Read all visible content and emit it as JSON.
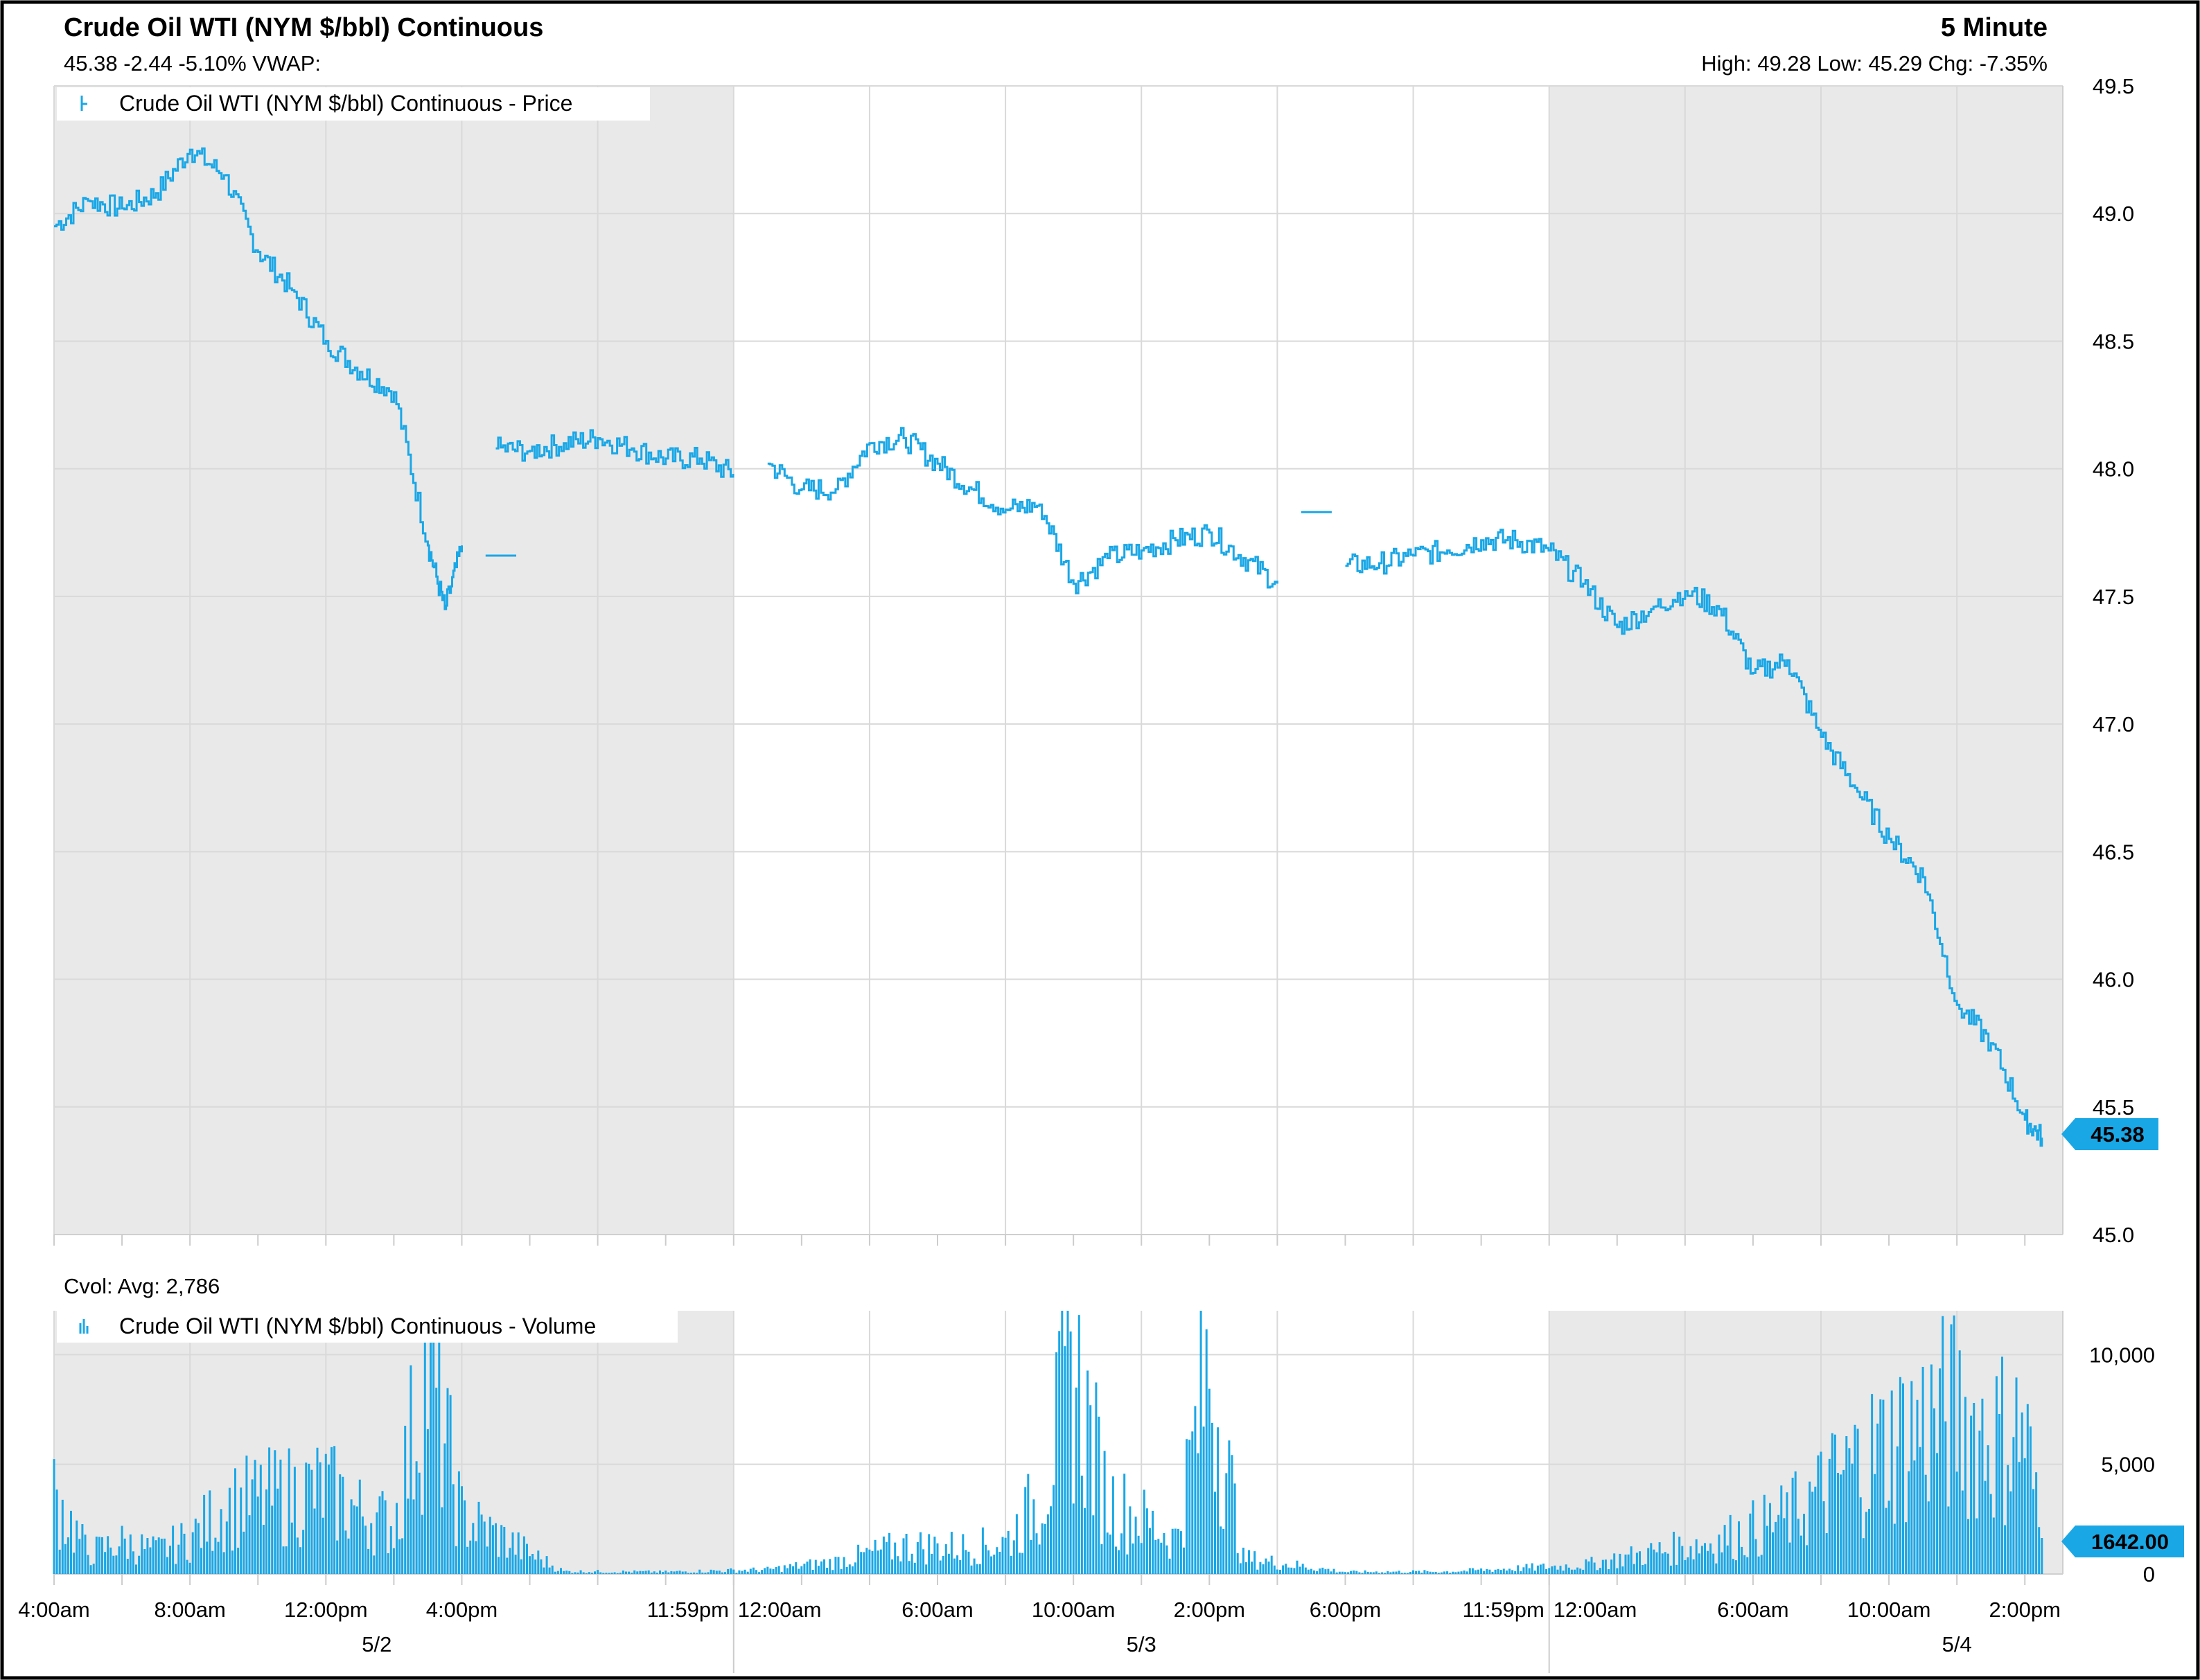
{
  "header": {
    "title": "Crude Oil WTI (NYM $/bbl) Continuous",
    "interval": "5 Minute",
    "quote_line": "45.38 -2.44 -5.10% VWAP:",
    "stats_line": "High: 49.28 Low: 45.29 Chg: -7.35%"
  },
  "volume_header": {
    "cvol_line": "Cvol: Avg: 2,786"
  },
  "colors": {
    "series": "#1aa7e6",
    "session_shade": "#e9e9e9",
    "grid": "#d9d9d9",
    "frame": "#000000",
    "text": "#000000"
  },
  "chart_data": [
    {
      "type": "line",
      "title": "Crude Oil WTI (NYM $/bbl) Continuous",
      "series": [
        {
          "name": "Crude Oil WTI (NYM $/bbl) Continuous - Price",
          "x": [
            "5/2 4:00am",
            "5/2 5:00am",
            "5/2 6:00am",
            "5/2 7:00am",
            "5/2 8:00am",
            "5/2 9:00am",
            "5/2 10:00am",
            "5/2 11:00am",
            "5/2 12:00pm",
            "5/2 1:00pm",
            "5/2 2:00pm",
            "5/2 3:00pm",
            "5/2 3:30pm",
            "5/2 4:00pm",
            "5/2 5:00pm",
            "5/2 6:00pm",
            "5/2 7:00pm",
            "5/2 8:00pm",
            "5/2 9:00pm",
            "5/2 10:00pm",
            "5/2 11:00pm",
            "5/2 11:59pm",
            "5/3 1:00am",
            "5/3 2:00am",
            "5/3 3:00am",
            "5/3 4:00am",
            "5/3 5:00am",
            "5/3 6:00am",
            "5/3 7:00am",
            "5/3 8:00am",
            "5/3 9:00am",
            "5/3 10:00am",
            "5/3 11:00am",
            "5/3 12:00pm",
            "5/3 1:00pm",
            "5/3 2:00pm",
            "5/3 3:00pm",
            "5/3 4:00pm",
            "5/3 6:00pm",
            "5/3 7:00pm",
            "5/3 8:00pm",
            "5/3 9:00pm",
            "5/3 10:00pm",
            "5/3 11:00pm",
            "5/3 11:59pm",
            "5/4 1:00am",
            "5/4 2:00am",
            "5/4 3:00am",
            "5/4 4:00am",
            "5/4 5:00am",
            "5/4 6:00am",
            "5/4 7:00am",
            "5/4 8:00am",
            "5/4 9:00am",
            "5/4 10:00am",
            "5/4 11:00am",
            "5/4 12:00pm",
            "5/4 1:00pm",
            "5/4 2:00pm",
            "5/4 2:30pm"
          ],
          "values": [
            48.95,
            49.05,
            49.02,
            49.08,
            49.25,
            49.15,
            48.85,
            48.7,
            48.5,
            48.38,
            48.3,
            47.7,
            47.45,
            47.7,
            48.08,
            48.07,
            48.1,
            48.12,
            48.08,
            48.04,
            48.04,
            47.98,
            48.02,
            47.92,
            47.92,
            48.1,
            48.12,
            48.02,
            47.92,
            47.84,
            47.86,
            47.55,
            47.65,
            47.68,
            47.72,
            47.75,
            47.65,
            47.55,
            47.62,
            47.63,
            47.66,
            47.68,
            47.72,
            47.72,
            47.68,
            47.55,
            47.38,
            47.45,
            47.52,
            47.45,
            47.2,
            47.25,
            46.95,
            46.75,
            46.55,
            46.4,
            45.9,
            45.75,
            45.45,
            45.38
          ],
          "last_value": 45.38
        }
      ],
      "xlabel": "",
      "ylabel": "",
      "ylim": [
        45.0,
        49.5
      ],
      "y_ticks": [
        "45.0",
        "45.5",
        "46.0",
        "46.5",
        "47.0",
        "47.5",
        "48.0",
        "48.5",
        "49.0",
        "49.5"
      ],
      "x_ticks": [
        "4:00am",
        "8:00am",
        "12:00pm",
        "4:00pm",
        "11:59pm",
        "12:00am",
        "6:00am",
        "10:00am",
        "2:00pm",
        "6:00pm",
        "11:59pm",
        "12:00am",
        "6:00am",
        "10:00am",
        "2:00pm"
      ],
      "date_labels": [
        "5/2",
        "5/3",
        "5/4"
      ],
      "shaded_sessions": [
        "5/2",
        "5/4"
      ],
      "grid": true,
      "legend": "top-left",
      "last_value_label": "45.38"
    },
    {
      "type": "bar",
      "title": "Cvol: Avg: 2,786",
      "series": [
        {
          "name": "Crude Oil WTI (NYM $/bbl) Continuous - Volume",
          "x": [
            "5/2 4:00am",
            "5/2 5:00am",
            "5/2 6:00am",
            "5/2 7:00am",
            "5/2 8:00am",
            "5/2 9:00am",
            "5/2 10:00am",
            "5/2 11:00am",
            "5/2 12:00pm",
            "5/2 1:00pm",
            "5/2 2:00pm",
            "5/2 3:00pm",
            "5/2 4:00pm",
            "5/2 5:00pm",
            "5/2 7:00pm",
            "5/2 10:00pm",
            "5/3 1:00am",
            "5/3 3:00am",
            "5/3 5:00am",
            "5/3 7:00am",
            "5/3 8:00am",
            "5/3 9:00am",
            "5/3 10:00am",
            "5/3 11:00am",
            "5/3 12:00pm",
            "5/3 1:00pm",
            "5/3 2:00pm",
            "5/3 3:00pm",
            "5/3 6:00pm",
            "5/3 9:00pm",
            "5/4 1:00am",
            "5/4 3:00am",
            "5/4 5:00am",
            "5/4 7:00am",
            "5/4 8:00am",
            "5/4 9:00am",
            "5/4 10:00am",
            "5/4 11:00am",
            "5/4 12:00pm",
            "5/4 1:00pm",
            "5/4 2:00pm",
            "5/4 2:30pm"
          ],
          "values": [
            4500,
            1200,
            1800,
            1300,
            2000,
            3800,
            4200,
            4500,
            4800,
            3500,
            2800,
            12000,
            3200,
            2200,
            150,
            120,
            250,
            700,
            1600,
            1500,
            1800,
            4300,
            11500,
            4200,
            3100,
            2000,
            11800,
            900,
            120,
            140,
            500,
            1200,
            1900,
            3200,
            4600,
            6200,
            7400,
            8500,
            9200,
            7700,
            8200,
            1642
          ],
          "last_value": 1642
        }
      ],
      "ylim": [
        0,
        12000
      ],
      "y_ticks": [
        "0",
        "5,000",
        "10,000"
      ],
      "legend": "top-left",
      "last_value_label": "1642.00"
    }
  ]
}
